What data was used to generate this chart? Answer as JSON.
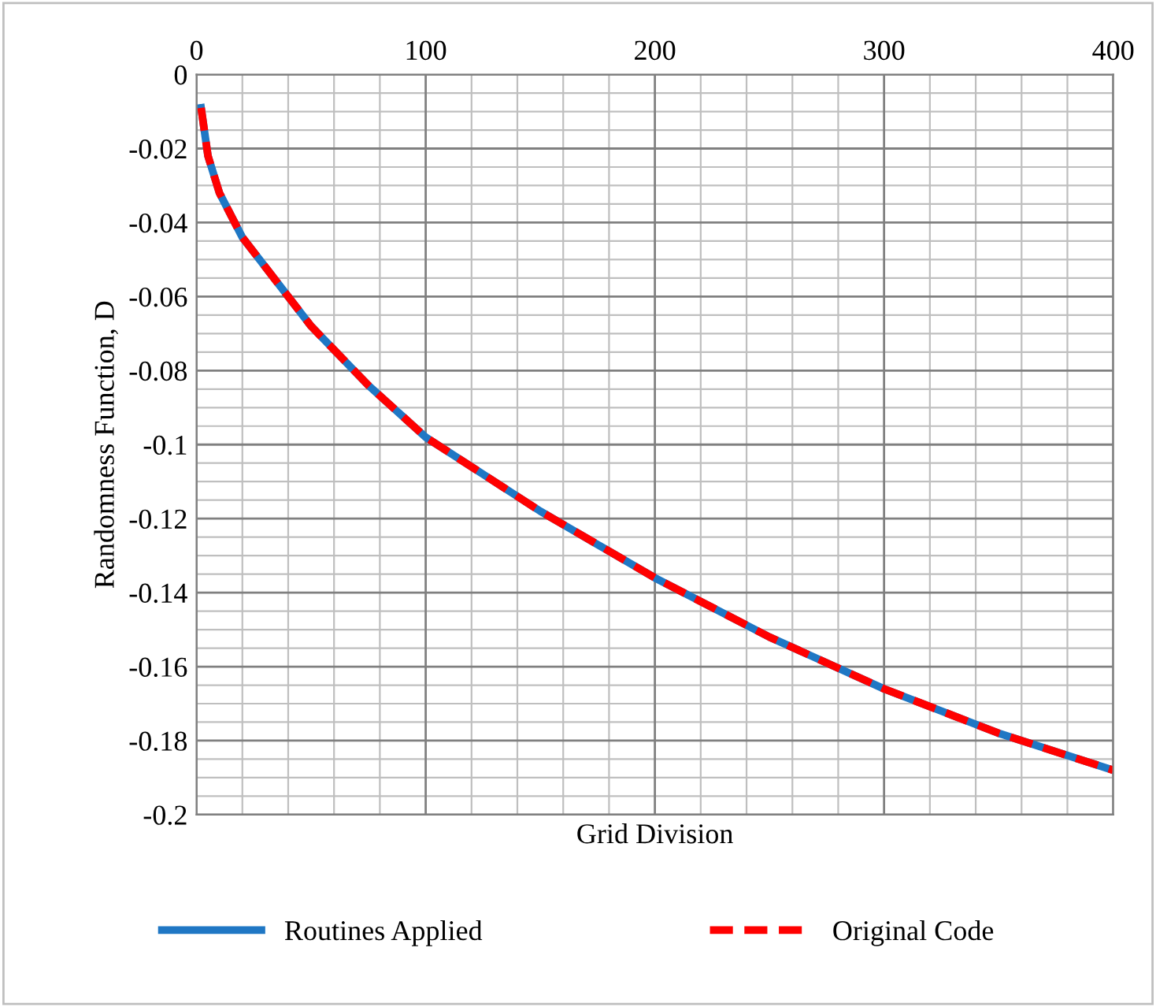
{
  "chart_data": {
    "type": "line",
    "xlabel": "Grid Division",
    "ylabel": "Randomness Function, D",
    "x": [
      2,
      5,
      10,
      20,
      30,
      50,
      75,
      100,
      150,
      200,
      250,
      300,
      350,
      400
    ],
    "series": [
      {
        "name": "Routines Applied",
        "color": "#1f77c4",
        "line_style": "solid",
        "values": [
          -0.009,
          -0.022,
          -0.032,
          -0.044,
          -0.052,
          -0.068,
          -0.084,
          -0.098,
          -0.118,
          -0.136,
          -0.152,
          -0.166,
          -0.178,
          -0.188
        ]
      },
      {
        "name": "Original Code",
        "color": "#ff0000",
        "line_style": "dashed",
        "values": [
          -0.009,
          -0.022,
          -0.032,
          -0.044,
          -0.052,
          -0.068,
          -0.084,
          -0.098,
          -0.118,
          -0.136,
          -0.152,
          -0.166,
          -0.178,
          -0.188
        ]
      }
    ],
    "xlim": [
      0,
      400
    ],
    "xticks": [
      0,
      100,
      200,
      300,
      400
    ],
    "ylim": [
      -0.2,
      0
    ],
    "yticks": [
      0,
      -0.02,
      -0.04,
      -0.06,
      -0.08,
      -0.1,
      -0.12,
      -0.14,
      -0.16,
      -0.18,
      -0.2
    ],
    "grid": true,
    "legend": "bottom",
    "marker": "none"
  }
}
